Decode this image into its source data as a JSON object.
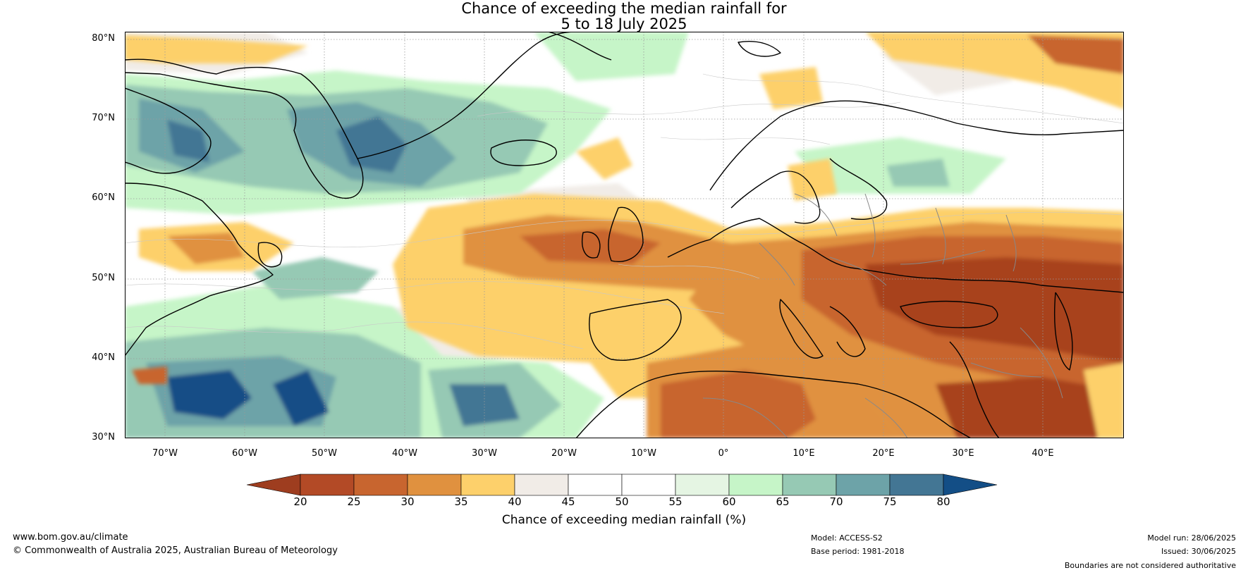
{
  "title": {
    "line1": "Chance of exceeding the median rainfall for",
    "line2": "5 to 18 July 2025"
  },
  "lat_labels": [
    "80°N",
    "70°N",
    "60°N",
    "50°N",
    "40°N",
    "30°N"
  ],
  "lon_labels": [
    "70°W",
    "60°W",
    "50°W",
    "40°W",
    "30°W",
    "20°W",
    "10°W",
    "0°",
    "10°E",
    "20°E",
    "30°E",
    "40°E"
  ],
  "colorbar": {
    "ticks": [
      "20",
      "25",
      "30",
      "35",
      "40",
      "45",
      "50",
      "55",
      "60",
      "65",
      "70",
      "75",
      "80"
    ],
    "colors": [
      "#9e3d1f",
      "#b34a26",
      "#c8652f",
      "#e0913f",
      "#fdd06b",
      "#f1ece7",
      "#ffffff",
      "#ffffff",
      "#e5f5e3",
      "#c6f5c8",
      "#96c9b4",
      "#6da3a8",
      "#437694",
      "#134e86"
    ],
    "label": "Chance of exceeding median rainfall (%)"
  },
  "footer": {
    "url": "www.bom.gov.au/climate",
    "copyright": "© Commonwealth of Australia 2025, Australian Bureau of Meteorology",
    "model": "Model: ACCESS-S2",
    "base_period": "Base period: 1981-2018",
    "model_run": "Model run: 28/06/2025",
    "issued": "Issued: 30/06/2025",
    "disclaimer": "Boundaries are not considered authoritative"
  },
  "map_colors": {
    "sea_neutral": "#ffffff",
    "dry": "#c8652f",
    "very_dry": "#a8431f",
    "moderately_dry": "#fdd06b",
    "wet": "#96c9b4",
    "very_wet": "#134e86",
    "slightly_wet": "#c6f5c8",
    "coast": "#000000",
    "border": "#888888"
  }
}
